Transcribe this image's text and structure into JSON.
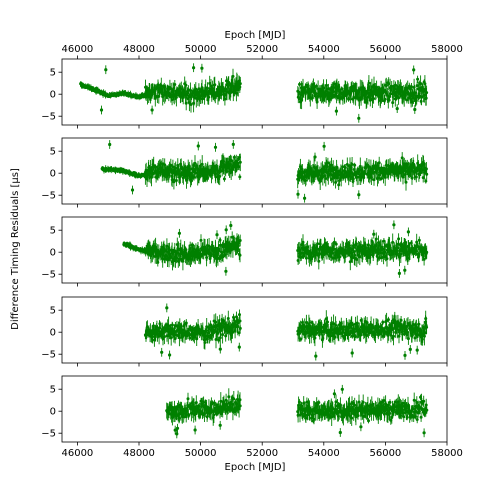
{
  "figure": {
    "top_xlabel": "Epoch [MJD]",
    "bottom_xlabel": "Epoch [MJD]",
    "ylabel": "Difference Timing Residuals [μs]"
  },
  "colors": {
    "series": "#008000",
    "axes": "#000000"
  },
  "chart_data": {
    "type": "scatter",
    "error_bars": true,
    "xlim": [
      45500,
      58000
    ],
    "ylim": [
      -7,
      8
    ],
    "xticks": [
      46000,
      48000,
      50000,
      52000,
      54000,
      56000,
      58000
    ],
    "yticks": [
      -5,
      0,
      5
    ],
    "gap": [
      51300,
      53150
    ],
    "panels": [
      {
        "start": 46100,
        "end": 57350,
        "early_trend": true,
        "sample_points": [
          {
            "x": 46100,
            "y": 2.2
          },
          {
            "x": 46500,
            "y": 1.2
          },
          {
            "x": 47000,
            "y": -0.3
          },
          {
            "x": 47500,
            "y": 0.2
          },
          {
            "x": 48000,
            "y": -0.6
          },
          {
            "x": 48500,
            "y": 0.8
          },
          {
            "x": 49500,
            "y": 0.0
          },
          {
            "x": 50500,
            "y": 0.5
          },
          {
            "x": 51100,
            "y": 1.8
          },
          {
            "x": 53300,
            "y": 0.3
          },
          {
            "x": 54000,
            "y": 0.0
          },
          {
            "x": 55000,
            "y": 0.5
          },
          {
            "x": 56000,
            "y": 0.2
          },
          {
            "x": 57300,
            "y": 0.6
          }
        ]
      },
      {
        "start": 46800,
        "end": 57350,
        "early_trend": true,
        "sample_points": [
          {
            "x": 46800,
            "y": 1.0
          },
          {
            "x": 47500,
            "y": 0.6
          },
          {
            "x": 48000,
            "y": -0.7
          },
          {
            "x": 48500,
            "y": 0.6
          },
          {
            "x": 49500,
            "y": 0.3
          },
          {
            "x": 50500,
            "y": 0.6
          },
          {
            "x": 51100,
            "y": 1.6
          },
          {
            "x": 53300,
            "y": 0.0
          },
          {
            "x": 54500,
            "y": 0.3
          },
          {
            "x": 56000,
            "y": 0.5
          },
          {
            "x": 57300,
            "y": 0.5
          }
        ]
      },
      {
        "start": 47500,
        "end": 57350,
        "early_trend": true,
        "sample_points": [
          {
            "x": 47500,
            "y": 2.0
          },
          {
            "x": 48000,
            "y": 0.5
          },
          {
            "x": 48500,
            "y": 0.2
          },
          {
            "x": 49500,
            "y": -0.5
          },
          {
            "x": 50500,
            "y": 0.3
          },
          {
            "x": 51100,
            "y": 1.5
          },
          {
            "x": 53300,
            "y": 0.0
          },
          {
            "x": 54500,
            "y": 0.3
          },
          {
            "x": 56000,
            "y": 0.6
          },
          {
            "x": 57300,
            "y": 0.6
          }
        ]
      },
      {
        "start": 48200,
        "end": 57350,
        "early_trend": false,
        "sample_points": [
          {
            "x": 48200,
            "y": 0.0
          },
          {
            "x": 49000,
            "y": 0.2
          },
          {
            "x": 50000,
            "y": -0.2
          },
          {
            "x": 51100,
            "y": 1.5
          },
          {
            "x": 53300,
            "y": 0.5
          },
          {
            "x": 54500,
            "y": 0.4
          },
          {
            "x": 56000,
            "y": 0.8
          },
          {
            "x": 57300,
            "y": 0.5
          }
        ]
      },
      {
        "start": 48900,
        "end": 57350,
        "early_trend": false,
        "sample_points": [
          {
            "x": 48900,
            "y": 0.0
          },
          {
            "x": 49500,
            "y": 0.2
          },
          {
            "x": 50500,
            "y": 0.5
          },
          {
            "x": 51100,
            "y": 1.5
          },
          {
            "x": 53300,
            "y": 0.0
          },
          {
            "x": 54500,
            "y": 0.3
          },
          {
            "x": 56000,
            "y": 0.4
          },
          {
            "x": 57300,
            "y": 0.3
          }
        ]
      }
    ]
  }
}
